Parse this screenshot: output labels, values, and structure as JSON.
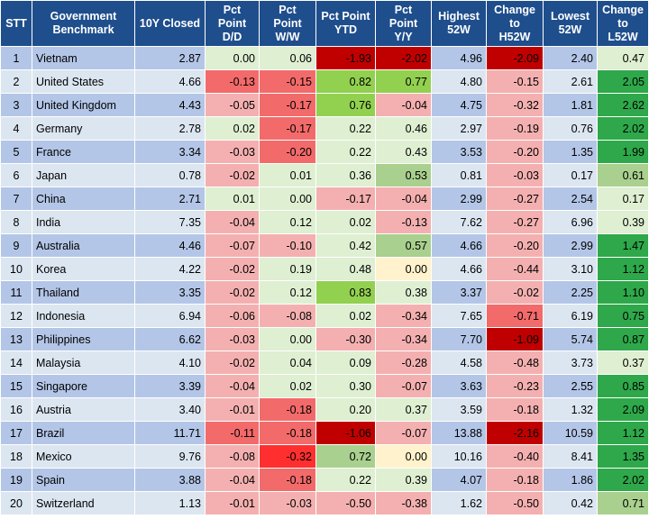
{
  "headers": [
    "STT",
    "Government\nBenchmark",
    "10Y Closed",
    "Pct\nPoint\nD/D",
    "Pct\nPoint\nW/W",
    "Pct Point\nYTD",
    "Pct\nPoint\nY/Y",
    "Highest\n52W",
    "Change\nto\nH52W",
    "Lowest\n52W",
    "Change\nto\nL52W"
  ],
  "header_bg": "#1f4e8c",
  "colors": {
    "band_dark": "#b4c6e7",
    "band_light": "#dce6f1",
    "neg_light": "#f4b0b0",
    "neg_mid": "#f36a6a",
    "neg_strong": "#ff2f2f",
    "neg_dark": "#c00000",
    "pos_light": "#dfefd2",
    "pos_mid": "#a9d08e",
    "pos_strong": "#92d050",
    "pos_green": "#2ea84a",
    "zero_yellow": "#fff2cc"
  },
  "rows": [
    {
      "stt": "1",
      "name": "Vietnam",
      "closed": "2.87",
      "dd": "0.00",
      "ww": "0.06",
      "ytd": "-1.93",
      "yy": "-2.02",
      "h52": "4.96",
      "ch52": "-2.09",
      "l52": "2.40",
      "cl52": "0.47"
    },
    {
      "stt": "2",
      "name": "United States",
      "closed": "4.66",
      "dd": "-0.13",
      "ww": "-0.15",
      "ytd": "0.82",
      "yy": "0.77",
      "h52": "4.80",
      "ch52": "-0.15",
      "l52": "2.61",
      "cl52": "2.05"
    },
    {
      "stt": "3",
      "name": "United Kingdom",
      "closed": "4.43",
      "dd": "-0.05",
      "ww": "-0.17",
      "ytd": "0.76",
      "yy": "-0.04",
      "h52": "4.75",
      "ch52": "-0.32",
      "l52": "1.81",
      "cl52": "2.62"
    },
    {
      "stt": "4",
      "name": "Germany",
      "closed": "2.78",
      "dd": "0.02",
      "ww": "-0.17",
      "ytd": "0.22",
      "yy": "0.46",
      "h52": "2.97",
      "ch52": "-0.19",
      "l52": "0.76",
      "cl52": "2.02"
    },
    {
      "stt": "5",
      "name": "France",
      "closed": "3.34",
      "dd": "-0.03",
      "ww": "-0.20",
      "ytd": "0.22",
      "yy": "0.43",
      "h52": "3.53",
      "ch52": "-0.20",
      "l52": "1.35",
      "cl52": "1.99"
    },
    {
      "stt": "6",
      "name": "Japan",
      "closed": "0.78",
      "dd": "-0.02",
      "ww": "0.01",
      "ytd": "0.36",
      "yy": "0.53",
      "h52": "0.81",
      "ch52": "-0.03",
      "l52": "0.17",
      "cl52": "0.61"
    },
    {
      "stt": "7",
      "name": "China",
      "closed": "2.71",
      "dd": "0.01",
      "ww": "0.00",
      "ytd": "-0.17",
      "yy": "-0.04",
      "h52": "2.99",
      "ch52": "-0.27",
      "l52": "2.54",
      "cl52": "0.17"
    },
    {
      "stt": "8",
      "name": "India",
      "closed": "7.35",
      "dd": "-0.04",
      "ww": "0.12",
      "ytd": "0.02",
      "yy": "-0.13",
      "h52": "7.62",
      "ch52": "-0.27",
      "l52": "6.96",
      "cl52": "0.39"
    },
    {
      "stt": "9",
      "name": "Australia",
      "closed": "4.46",
      "dd": "-0.07",
      "ww": "-0.10",
      "ytd": "0.42",
      "yy": "0.57",
      "h52": "4.66",
      "ch52": "-0.20",
      "l52": "2.99",
      "cl52": "1.47"
    },
    {
      "stt": "10",
      "name": "Korea",
      "closed": "4.22",
      "dd": "-0.02",
      "ww": "0.19",
      "ytd": "0.48",
      "yy": "0.00",
      "h52": "4.66",
      "ch52": "-0.44",
      "l52": "3.10",
      "cl52": "1.12"
    },
    {
      "stt": "11",
      "name": "Thailand",
      "closed": "3.35",
      "dd": "-0.02",
      "ww": "0.12",
      "ytd": "0.83",
      "yy": "0.38",
      "h52": "3.37",
      "ch52": "-0.02",
      "l52": "2.25",
      "cl52": "1.10"
    },
    {
      "stt": "12",
      "name": "Indonesia",
      "closed": "6.94",
      "dd": "-0.06",
      "ww": "-0.08",
      "ytd": "0.02",
      "yy": "-0.34",
      "h52": "7.65",
      "ch52": "-0.71",
      "l52": "6.19",
      "cl52": "0.75"
    },
    {
      "stt": "13",
      "name": "Philippines",
      "closed": "6.62",
      "dd": "-0.03",
      "ww": "0.00",
      "ytd": "-0.30",
      "yy": "-0.34",
      "h52": "7.70",
      "ch52": "-1.09",
      "l52": "5.74",
      "cl52": "0.87"
    },
    {
      "stt": "14",
      "name": "Malaysia",
      "closed": "4.10",
      "dd": "-0.02",
      "ww": "0.04",
      "ytd": "0.09",
      "yy": "-0.28",
      "h52": "4.58",
      "ch52": "-0.48",
      "l52": "3.73",
      "cl52": "0.37"
    },
    {
      "stt": "15",
      "name": "Singapore",
      "closed": "3.39",
      "dd": "-0.04",
      "ww": "0.02",
      "ytd": "0.30",
      "yy": "-0.07",
      "h52": "3.63",
      "ch52": "-0.23",
      "l52": "2.55",
      "cl52": "0.85"
    },
    {
      "stt": "16",
      "name": "Austria",
      "closed": "3.40",
      "dd": "-0.01",
      "ww": "-0.18",
      "ytd": "0.20",
      "yy": "0.37",
      "h52": "3.59",
      "ch52": "-0.18",
      "l52": "1.32",
      "cl52": "2.09"
    },
    {
      "stt": "17",
      "name": "Brazil",
      "closed": "11.71",
      "dd": "-0.11",
      "ww": "-0.18",
      "ytd": "-1.06",
      "yy": "-0.07",
      "h52": "13.88",
      "ch52": "-2.16",
      "l52": "10.59",
      "cl52": "1.12"
    },
    {
      "stt": "18",
      "name": "Mexico",
      "closed": "9.76",
      "dd": "-0.08",
      "ww": "-0.32",
      "ytd": "0.72",
      "yy": "0.00",
      "h52": "10.16",
      "ch52": "-0.40",
      "l52": "8.41",
      "cl52": "1.35"
    },
    {
      "stt": "19",
      "name": "Spain",
      "closed": "3.88",
      "dd": "-0.04",
      "ww": "-0.18",
      "ytd": "0.22",
      "yy": "0.39",
      "h52": "4.07",
      "ch52": "-0.18",
      "l52": "1.86",
      "cl52": "2.02"
    },
    {
      "stt": "20",
      "name": "Switzerland",
      "closed": "1.13",
      "dd": "-0.01",
      "ww": "-0.03",
      "ytd": "-0.50",
      "yy": "-0.38",
      "h52": "1.62",
      "ch52": "-0.50",
      "l52": "0.42",
      "cl52": "0.71"
    }
  ]
}
